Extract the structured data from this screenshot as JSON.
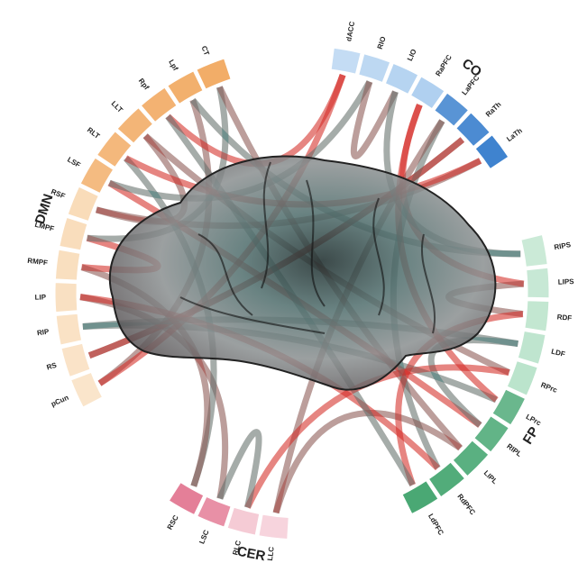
{
  "groups": [
    {
      "name": "DMN",
      "nodes": [
        "pCun",
        "RS",
        "RIP",
        "LIP",
        "RMPF",
        "LMPF",
        "RSF",
        "LSF",
        "RLT",
        "LLT",
        "Rpf",
        "Lpf",
        "CT"
      ]
    },
    {
      "name": "CO",
      "nodes": [
        "dACC",
        "RIO",
        "LIO",
        "RaPFC",
        "LaPFC",
        "RaTh",
        "LaTh"
      ]
    },
    {
      "name": "FP",
      "nodes": [
        "RIPS",
        "LIPS",
        "RDF",
        "LDF",
        "RPrc",
        "LPrc",
        "RIPL",
        "LIPL",
        "RdPFC",
        "LdPFC"
      ]
    },
    {
      "name": "CER",
      "nodes": [
        "LLC",
        "RLC",
        "LSC",
        "RSC"
      ]
    }
  ]
}
